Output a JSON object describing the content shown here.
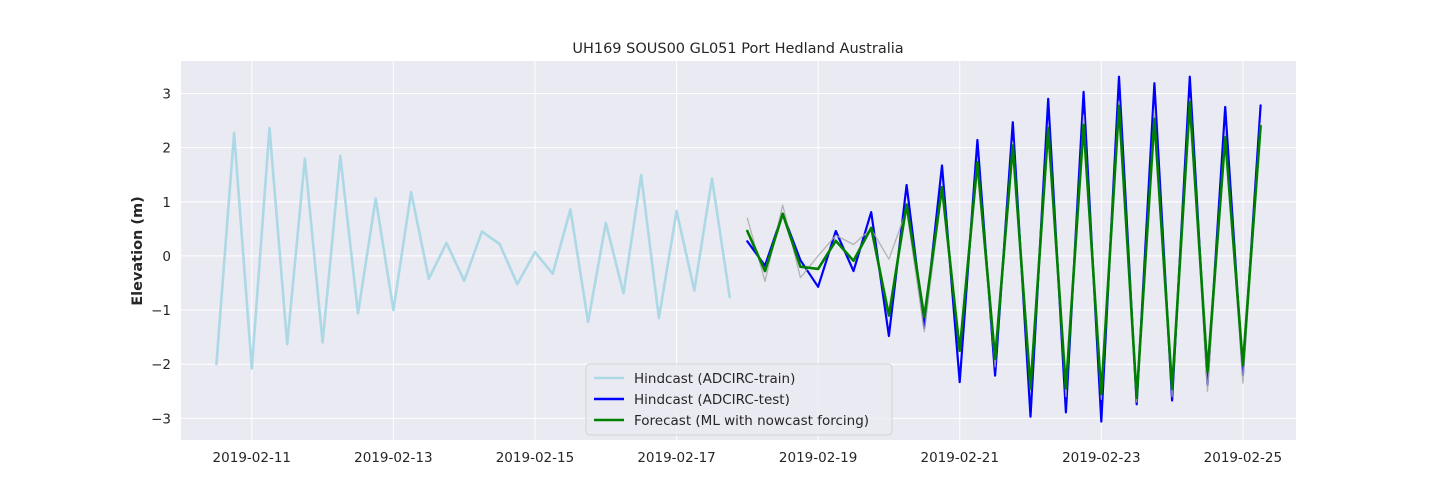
{
  "chart_data": {
    "type": "line",
    "title": "UH169 SOUS00 GL051 Port Hedland Australia",
    "xlabel": "",
    "ylabel": "Elevation (m)",
    "x_axis_type": "date",
    "xlim": [
      "2019-02-10 00:00",
      "2019-02-25 18:00"
    ],
    "ylim": [
      -3.4,
      3.6
    ],
    "x_ticks": [
      "2019-02-11",
      "2019-02-13",
      "2019-02-15",
      "2019-02-17",
      "2019-02-19",
      "2019-02-21",
      "2019-02-23",
      "2019-02-25"
    ],
    "y_ticks": [
      -3,
      -2,
      -1,
      0,
      1,
      2,
      3
    ],
    "y_tick_labels": [
      "−3",
      "−2",
      "−1",
      "0",
      "1",
      "2",
      "3"
    ],
    "grid": true,
    "legend_position": "lower-center",
    "legend": [
      {
        "label": "Hindcast (ADCIRC-train)",
        "color": "#add8e6"
      },
      {
        "label": "Hindcast (ADCIRC-test)",
        "color": "#0000ff"
      },
      {
        "label": "Forecast (ML with nowcast forcing)",
        "color": "#008000"
      }
    ],
    "series": [
      {
        "color": "#add8e6",
        "data": [
          [
            "2019-02-10 12:00",
            -2.0
          ],
          [
            "2019-02-10 18:00",
            2.27
          ],
          [
            "2019-02-11 00:00",
            -2.08
          ],
          [
            "2019-02-11 06:00",
            2.36
          ],
          [
            "2019-02-11 12:00",
            -1.63
          ],
          [
            "2019-02-11 18:00",
            1.8
          ],
          [
            "2019-02-12 00:00",
            -1.6
          ],
          [
            "2019-02-12 06:00",
            1.85
          ],
          [
            "2019-02-12 12:00",
            -1.06
          ],
          [
            "2019-02-12 18:00",
            1.06
          ],
          [
            "2019-02-13 00:00",
            -1.0
          ],
          [
            "2019-02-13 06:00",
            1.18
          ],
          [
            "2019-02-13 12:00",
            -0.42
          ],
          [
            "2019-02-13 18:00",
            0.24
          ],
          [
            "2019-02-14 00:00",
            -0.46
          ],
          [
            "2019-02-14 06:00",
            0.45
          ],
          [
            "2019-02-14 12:00",
            0.22
          ],
          [
            "2019-02-14 18:00",
            -0.52
          ],
          [
            "2019-02-15 00:00",
            0.07
          ],
          [
            "2019-02-15 06:00",
            -0.33
          ],
          [
            "2019-02-15 12:00",
            0.86
          ],
          [
            "2019-02-15 18:00",
            -1.22
          ],
          [
            "2019-02-16 00:00",
            0.61
          ],
          [
            "2019-02-16 06:00",
            -0.69
          ],
          [
            "2019-02-16 12:00",
            1.49
          ],
          [
            "2019-02-16 18:00",
            -1.15
          ],
          [
            "2019-02-17 00:00",
            0.83
          ],
          [
            "2019-02-17 06:00",
            -0.64
          ],
          [
            "2019-02-17 12:00",
            1.43
          ],
          [
            "2019-02-17 18:00",
            -0.76
          ]
        ]
      },
      {
        "color": "#0000ff",
        "data": [
          [
            "2019-02-18 00:00",
            0.27
          ],
          [
            "2019-02-18 06:00",
            -0.18
          ],
          [
            "2019-02-18 12:00",
            0.78
          ],
          [
            "2019-02-18 18:00",
            -0.08
          ],
          [
            "2019-02-19 00:00",
            -0.57
          ],
          [
            "2019-02-19 06:00",
            0.46
          ],
          [
            "2019-02-19 12:00",
            -0.28
          ],
          [
            "2019-02-19 18:00",
            0.81
          ],
          [
            "2019-02-20 00:00",
            -1.48
          ],
          [
            "2019-02-20 06:00",
            1.31
          ],
          [
            "2019-02-20 12:00",
            -1.33
          ],
          [
            "2019-02-20 18:00",
            1.67
          ],
          [
            "2019-02-21 00:00",
            -2.33
          ],
          [
            "2019-02-21 06:00",
            2.14
          ],
          [
            "2019-02-21 12:00",
            -2.21
          ],
          [
            "2019-02-21 18:00",
            2.47
          ],
          [
            "2019-02-22 00:00",
            -2.97
          ],
          [
            "2019-02-22 06:00",
            2.9
          ],
          [
            "2019-02-22 12:00",
            -2.89
          ],
          [
            "2019-02-22 18:00",
            3.03
          ],
          [
            "2019-02-23 00:00",
            -3.06
          ],
          [
            "2019-02-23 06:00",
            3.31
          ],
          [
            "2019-02-23 12:00",
            -2.74
          ],
          [
            "2019-02-23 18:00",
            3.19
          ],
          [
            "2019-02-24 00:00",
            -2.67
          ],
          [
            "2019-02-24 06:00",
            3.31
          ],
          [
            "2019-02-24 12:00",
            -2.38
          ],
          [
            "2019-02-24 18:00",
            2.75
          ],
          [
            "2019-02-25 00:00",
            -2.2
          ],
          [
            "2019-02-25 06:00",
            2.78
          ]
        ]
      },
      {
        "color": "#a9a9a9",
        "data": [
          [
            "2019-02-18 00:00",
            0.7
          ],
          [
            "2019-02-18 06:00",
            -0.47
          ],
          [
            "2019-02-18 12:00",
            0.94
          ],
          [
            "2019-02-18 18:00",
            -0.4
          ],
          [
            "2019-02-19 00:00",
            0.0
          ],
          [
            "2019-02-19 06:00",
            0.38
          ],
          [
            "2019-02-19 12:00",
            0.21
          ],
          [
            "2019-02-19 18:00",
            0.5
          ],
          [
            "2019-02-20 00:00",
            -0.06
          ],
          [
            "2019-02-20 06:00",
            0.85
          ],
          [
            "2019-02-20 12:00",
            -1.4
          ],
          [
            "2019-02-20 18:00",
            1.2
          ],
          [
            "2019-02-21 00:00",
            -1.7
          ],
          [
            "2019-02-21 06:00",
            1.6
          ],
          [
            "2019-02-21 12:00",
            -2.05
          ],
          [
            "2019-02-21 18:00",
            2.1
          ],
          [
            "2019-02-22 00:00",
            -2.3
          ],
          [
            "2019-02-22 06:00",
            2.4
          ],
          [
            "2019-02-22 12:00",
            -2.6
          ],
          [
            "2019-02-22 18:00",
            2.6
          ],
          [
            "2019-02-23 00:00",
            -2.65
          ],
          [
            "2019-02-23 06:00",
            2.85
          ],
          [
            "2019-02-23 12:00",
            -2.7
          ],
          [
            "2019-02-23 18:00",
            2.7
          ],
          [
            "2019-02-24 00:00",
            -2.6
          ],
          [
            "2019-02-24 06:00",
            2.9
          ],
          [
            "2019-02-24 12:00",
            -2.5
          ],
          [
            "2019-02-24 18:00",
            2.3
          ],
          [
            "2019-02-25 00:00",
            -2.35
          ],
          [
            "2019-02-25 06:00",
            2.45
          ]
        ]
      },
      {
        "color": "#008000",
        "data": [
          [
            "2019-02-18 00:00",
            0.46
          ],
          [
            "2019-02-18 06:00",
            -0.28
          ],
          [
            "2019-02-18 12:00",
            0.78
          ],
          [
            "2019-02-18 18:00",
            -0.2
          ],
          [
            "2019-02-19 00:00",
            -0.24
          ],
          [
            "2019-02-19 06:00",
            0.28
          ],
          [
            "2019-02-19 12:00",
            -0.09
          ],
          [
            "2019-02-19 18:00",
            0.52
          ],
          [
            "2019-02-20 00:00",
            -1.1
          ],
          [
            "2019-02-20 06:00",
            0.95
          ],
          [
            "2019-02-20 12:00",
            -1.13
          ],
          [
            "2019-02-20 18:00",
            1.27
          ],
          [
            "2019-02-21 00:00",
            -1.75
          ],
          [
            "2019-02-21 06:00",
            1.73
          ],
          [
            "2019-02-21 12:00",
            -1.9
          ],
          [
            "2019-02-21 18:00",
            2.04
          ],
          [
            "2019-02-22 00:00",
            -2.45
          ],
          [
            "2019-02-22 06:00",
            2.36
          ],
          [
            "2019-02-22 12:00",
            -2.45
          ],
          [
            "2019-02-22 18:00",
            2.42
          ],
          [
            "2019-02-23 00:00",
            -2.55
          ],
          [
            "2019-02-23 06:00",
            2.77
          ],
          [
            "2019-02-23 12:00",
            -2.62
          ],
          [
            "2019-02-23 18:00",
            2.53
          ],
          [
            "2019-02-24 00:00",
            -2.46
          ],
          [
            "2019-02-24 06:00",
            2.84
          ],
          [
            "2019-02-24 12:00",
            -2.14
          ],
          [
            "2019-02-24 18:00",
            2.19
          ],
          [
            "2019-02-25 00:00",
            -2.02
          ],
          [
            "2019-02-25 06:00",
            2.4
          ]
        ]
      }
    ],
    "colors": {
      "plot_background": "#eaeaf2",
      "grid": "#ffffff",
      "legend_background": "#eaeaf2",
      "text": "#262626"
    }
  }
}
